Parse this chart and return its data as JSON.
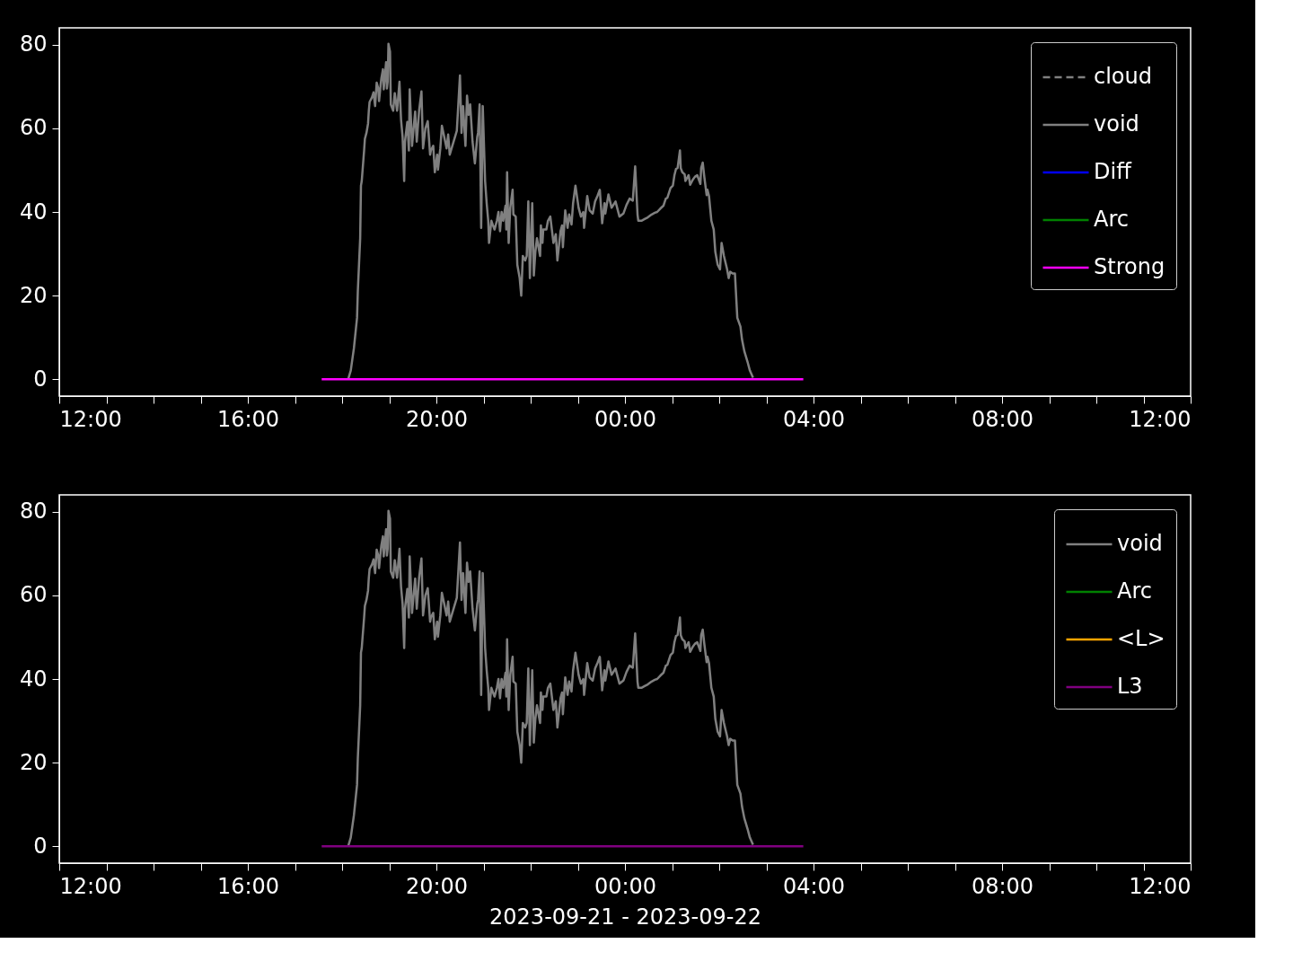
{
  "chart_data": [
    {
      "type": "line",
      "xlim": [
        "2023-09-21T12:00",
        "2023-09-22T12:00"
      ],
      "ylim": [
        -4,
        84
      ],
      "yticks": [
        0,
        20,
        40,
        60,
        80
      ],
      "grid": false,
      "legend": "top right",
      "marker": "none",
      "xticks": [
        {
          "value": "2023-09-21T12:00",
          "label": "12:00"
        },
        {
          "value": "2023-09-21T13:00",
          "label": null
        },
        {
          "value": "2023-09-21T14:00",
          "label": null
        },
        {
          "value": "2023-09-21T15:00",
          "label": null
        },
        {
          "value": "2023-09-21T16:00",
          "label": "16:00"
        },
        {
          "value": "2023-09-21T17:00",
          "label": null
        },
        {
          "value": "2023-09-21T18:00",
          "label": null
        },
        {
          "value": "2023-09-21T19:00",
          "label": null
        },
        {
          "value": "2023-09-21T20:00",
          "label": "20:00"
        },
        {
          "value": "2023-09-21T21:00",
          "label": null
        },
        {
          "value": "2023-09-21T22:00",
          "label": null
        },
        {
          "value": "2023-09-21T23:00",
          "label": null
        },
        {
          "value": "2023-09-22T00:00",
          "label": "00:00"
        },
        {
          "value": "2023-09-22T01:00",
          "label": null
        },
        {
          "value": "2023-09-22T02:00",
          "label": null
        },
        {
          "value": "2023-09-22T03:00",
          "label": null
        },
        {
          "value": "2023-09-22T04:00",
          "label": "04:00"
        },
        {
          "value": "2023-09-22T05:00",
          "label": null
        },
        {
          "value": "2023-09-22T06:00",
          "label": null
        },
        {
          "value": "2023-09-22T07:00",
          "label": null
        },
        {
          "value": "2023-09-22T08:00",
          "label": "08:00"
        },
        {
          "value": "2023-09-22T09:00",
          "label": null
        },
        {
          "value": "2023-09-22T10:00",
          "label": null
        },
        {
          "value": "2023-09-22T11:00",
          "label": null
        },
        {
          "value": "2023-09-22T12:00",
          "label": "12:00"
        }
      ],
      "series": [
        {
          "name": "cloud",
          "color": "#808080",
          "line_style": "dashed"
        },
        {
          "name": "void",
          "color": "#808080",
          "x": [
            "2023-09-21T18:08",
            "2023-09-21T18:11",
            "2023-09-21T18:15",
            "2023-09-21T18:19",
            "2023-09-21T18:20",
            "2023-09-21T18:23",
            "2023-09-21T18:24",
            "2023-09-21T18:25",
            "2023-09-21T18:28",
            "2023-09-21T18:29",
            "2023-09-21T18:31",
            "2023-09-21T18:33",
            "2023-09-21T18:34",
            "2023-09-21T18:35",
            "2023-09-21T18:38",
            "2023-09-21T18:40",
            "2023-09-21T18:42",
            "2023-09-21T18:44",
            "2023-09-21T18:46",
            "2023-09-21T18:47",
            "2023-09-21T18:49",
            "2023-09-21T18:50",
            "2023-09-21T18:52",
            "2023-09-21T18:53",
            "2023-09-21T18:55",
            "2023-09-21T18:56",
            "2023-09-21T18:57",
            "2023-09-21T18:58",
            "2023-09-21T18:59",
            "2023-09-21T19:01",
            "2023-09-21T19:02",
            "2023-09-21T19:05",
            "2023-09-21T19:07",
            "2023-09-21T19:10",
            "2023-09-21T19:13",
            "2023-09-21T19:15",
            "2023-09-21T19:17",
            "2023-09-21T19:19",
            "2023-09-21T19:20",
            "2023-09-21T19:23",
            "2023-09-21T19:25",
            "2023-09-21T19:26",
            "2023-09-21T19:29",
            "2023-09-21T19:31",
            "2023-09-21T19:33",
            "2023-09-21T19:35",
            "2023-09-21T19:38",
            "2023-09-21T19:41",
            "2023-09-21T19:43",
            "2023-09-21T19:46",
            "2023-09-21T19:49",
            "2023-09-21T19:52",
            "2023-09-21T19:53",
            "2023-09-21T19:56",
            "2023-09-21T19:58",
            "2023-09-21T20:01",
            "2023-09-21T20:02",
            "2023-09-21T20:05",
            "2023-09-21T20:07",
            "2023-09-21T20:10",
            "2023-09-21T20:13",
            "2023-09-21T20:15",
            "2023-09-21T20:17",
            "2023-09-21T20:26",
            "2023-09-21T20:30",
            "2023-09-21T20:32",
            "2023-09-21T20:34",
            "2023-09-21T20:37",
            "2023-09-21T20:39",
            "2023-09-21T20:41",
            "2023-09-21T20:43",
            "2023-09-21T20:46",
            "2023-09-21T20:49",
            "2023-09-21T20:52",
            "2023-09-21T20:53",
            "2023-09-21T20:55",
            "2023-09-21T20:57",
            "2023-09-21T20:59",
            "2023-09-21T21:02",
            "2023-09-21T21:04",
            "2023-09-21T21:06",
            "2023-09-21T21:07",
            "2023-09-21T21:10",
            "2023-09-21T21:12",
            "2023-09-21T21:14",
            "2023-09-21T21:17",
            "2023-09-21T21:19",
            "2023-09-21T21:21",
            "2023-09-21T21:23",
            "2023-09-21T21:25",
            "2023-09-21T21:28",
            "2023-09-21T21:29",
            "2023-09-21T21:30",
            "2023-09-21T21:32",
            "2023-09-21T21:34",
            "2023-09-21T21:37",
            "2023-09-21T21:38",
            "2023-09-21T21:41",
            "2023-09-21T21:43",
            "2023-09-21T21:46",
            "2023-09-21T21:48",
            "2023-09-21T21:50",
            "2023-09-21T21:53",
            "2023-09-21T21:55",
            "2023-09-21T21:57",
            "2023-09-21T21:59",
            "2023-09-21T22:02",
            "2023-09-21T22:04",
            "2023-09-21T22:06",
            "2023-09-21T22:08",
            "2023-09-21T22:12",
            "2023-09-21T22:13",
            "2023-09-21T22:15",
            "2023-09-21T22:16",
            "2023-09-21T22:20",
            "2023-09-21T22:22",
            "2023-09-21T22:25",
            "2023-09-21T22:29",
            "2023-09-21T22:32",
            "2023-09-21T22:34",
            "2023-09-21T22:38",
            "2023-09-21T22:40",
            "2023-09-21T22:41",
            "2023-09-21T22:44",
            "2023-09-21T22:47",
            "2023-09-21T22:49",
            "2023-09-21T22:52",
            "2023-09-21T22:54",
            "2023-09-21T22:57",
            "2023-09-21T23:01",
            "2023-09-21T23:04",
            "2023-09-21T23:07",
            "2023-09-21T23:08",
            "2023-09-21T23:12",
            "2023-09-21T23:15",
            "2023-09-21T23:19",
            "2023-09-21T23:22",
            "2023-09-21T23:25",
            "2023-09-21T23:28",
            "2023-09-21T23:31",
            "2023-09-21T23:34",
            "2023-09-21T23:35",
            "2023-09-21T23:39",
            "2023-09-21T23:43",
            "2023-09-21T23:48",
            "2023-09-21T23:53",
            "2023-09-21T23:58",
            "2023-09-22T00:02",
            "2023-09-22T00:06",
            "2023-09-22T00:10",
            "2023-09-22T00:13",
            "2023-09-22T00:16",
            "2023-09-22T00:17",
            "2023-09-22T00:21",
            "2023-09-22T00:25",
            "2023-09-22T00:29",
            "2023-09-22T00:34",
            "2023-09-22T00:38",
            "2023-09-22T00:41",
            "2023-09-22T00:45",
            "2023-09-22T00:49",
            "2023-09-22T00:52",
            "2023-09-22T00:54",
            "2023-09-22T00:58",
            "2023-09-22T01:01",
            "2023-09-22T01:03",
            "2023-09-22T01:05",
            "2023-09-22T01:07",
            "2023-09-22T01:10",
            "2023-09-22T01:11",
            "2023-09-22T01:13",
            "2023-09-22T01:16",
            "2023-09-22T01:17",
            "2023-09-22T01:21",
            "2023-09-22T01:23",
            "2023-09-22T01:26",
            "2023-09-22T01:29",
            "2023-09-22T01:32",
            "2023-09-22T01:36",
            "2023-09-22T01:37",
            "2023-09-22T01:39",
            "2023-09-22T01:41",
            "2023-09-22T01:44",
            "2023-09-22T01:45",
            "2023-09-22T01:47",
            "2023-09-22T01:50",
            "2023-09-22T01:53",
            "2023-09-22T01:55",
            "2023-09-22T01:58",
            "2023-09-22T02:01",
            "2023-09-22T02:03",
            "2023-09-22T02:06",
            "2023-09-22T02:10",
            "2023-09-22T02:12",
            "2023-09-22T02:14",
            "2023-09-22T02:17",
            "2023-09-22T02:20",
            "2023-09-22T02:23",
            "2023-09-22T02:27",
            "2023-09-22T02:29",
            "2023-09-22T02:32",
            "2023-09-22T02:36",
            "2023-09-22T02:39",
            "2023-09-22T02:43"
          ],
          "values": [
            0.2,
            2.1,
            7.4,
            14.7,
            21.1,
            33.7,
            46.3,
            47.4,
            54.7,
            57.5,
            58.9,
            61.1,
            64.2,
            66.3,
            67.4,
            68.6,
            65.3,
            70.9,
            69.5,
            66.5,
            70.3,
            72.0,
            74.1,
            69.3,
            73.7,
            75.8,
            69.5,
            71.1,
            80.2,
            78.3,
            65.7,
            64.2,
            68.4,
            64.2,
            71.1,
            62.1,
            57.9,
            47.4,
            56.8,
            61.5,
            54.7,
            69.3,
            55.8,
            60.0,
            64.0,
            56.8,
            64.2,
            68.8,
            55.2,
            60.0,
            61.7,
            53.7,
            54.7,
            55.8,
            49.5,
            53.7,
            50.1,
            55.2,
            60.6,
            57.9,
            55.2,
            58.5,
            53.7,
            59.4,
            72.6,
            58.9,
            65.3,
            55.8,
            67.8,
            63.2,
            65.7,
            56.8,
            51.6,
            57.9,
            58.9,
            65.7,
            36.2,
            65.3,
            47.4,
            42.1,
            37.9,
            32.6,
            37.9,
            36.8,
            35.8,
            37.9,
            40.0,
            35.4,
            40.0,
            37.9,
            41.5,
            35.8,
            49.5,
            32.6,
            41.0,
            45.3,
            39.4,
            38.9,
            27.4,
            24.2,
            20.0,
            29.5,
            28.4,
            29.5,
            42.5,
            24.2,
            42.1,
            24.8,
            30.5,
            33.7,
            29.5,
            36.8,
            32.6,
            35.8,
            35.8,
            37.9,
            38.9,
            32.6,
            34.7,
            28.4,
            35.4,
            36.8,
            31.6,
            40.4,
            36.2,
            39.4,
            37.0,
            42.1,
            46.3,
            41.0,
            38.9,
            40.0,
            36.2,
            43.8,
            40.4,
            39.6,
            42.5,
            43.8,
            45.3,
            37.3,
            42.1,
            39.6,
            44.2,
            41.0,
            42.5,
            38.9,
            39.6,
            41.7,
            43.2,
            42.7,
            50.9,
            39.4,
            37.9,
            37.9,
            38.3,
            38.7,
            39.4,
            39.8,
            40.0,
            40.8,
            41.5,
            43.2,
            43.4,
            45.7,
            46.3,
            48.8,
            50.3,
            50.5,
            54.7,
            50.5,
            49.5,
            49.0,
            47.4,
            48.8,
            46.5,
            47.6,
            48.4,
            48.8,
            46.7,
            50.5,
            51.8,
            48.4,
            44.0,
            45.3,
            43.8,
            37.9,
            35.8,
            30.5,
            27.4,
            26.3,
            32.6,
            29.5,
            26.3,
            24.2,
            25.7,
            25.3,
            25.3,
            14.7,
            12.6,
            9.5,
            6.7,
            4.2,
            2.1,
            0.4
          ]
        },
        {
          "name": "Diff",
          "color": "#0000ff"
        },
        {
          "name": "Arc",
          "color": "#008000"
        },
        {
          "name": "Strong",
          "color": "#ff00ff",
          "x": [
            "2023-09-21T17:34",
            "2023-09-22T03:47"
          ],
          "values": [
            0,
            0
          ]
        }
      ]
    },
    {
      "type": "line",
      "xlim": [
        "2023-09-21T12:00",
        "2023-09-22T12:00"
      ],
      "ylim": [
        -4,
        84
      ],
      "yticks": [
        0,
        20,
        40,
        60,
        80
      ],
      "grid": false,
      "legend": "top right",
      "marker": "none",
      "xlabel": "2023-09-21 - 2023-09-22",
      "xticks": [
        {
          "value": "2023-09-21T12:00",
          "label": "12:00"
        },
        {
          "value": "2023-09-21T13:00",
          "label": null
        },
        {
          "value": "2023-09-21T14:00",
          "label": null
        },
        {
          "value": "2023-09-21T15:00",
          "label": null
        },
        {
          "value": "2023-09-21T16:00",
          "label": "16:00"
        },
        {
          "value": "2023-09-21T17:00",
          "label": null
        },
        {
          "value": "2023-09-21T18:00",
          "label": null
        },
        {
          "value": "2023-09-21T19:00",
          "label": null
        },
        {
          "value": "2023-09-21T20:00",
          "label": "20:00"
        },
        {
          "value": "2023-09-21T21:00",
          "label": null
        },
        {
          "value": "2023-09-21T22:00",
          "label": null
        },
        {
          "value": "2023-09-21T23:00",
          "label": null
        },
        {
          "value": "2023-09-22T00:00",
          "label": "00:00"
        },
        {
          "value": "2023-09-22T01:00",
          "label": null
        },
        {
          "value": "2023-09-22T02:00",
          "label": null
        },
        {
          "value": "2023-09-22T03:00",
          "label": null
        },
        {
          "value": "2023-09-22T04:00",
          "label": "04:00"
        },
        {
          "value": "2023-09-22T05:00",
          "label": null
        },
        {
          "value": "2023-09-22T06:00",
          "label": null
        },
        {
          "value": "2023-09-22T07:00",
          "label": null
        },
        {
          "value": "2023-09-22T08:00",
          "label": "08:00"
        },
        {
          "value": "2023-09-22T09:00",
          "label": null
        },
        {
          "value": "2023-09-22T10:00",
          "label": null
        },
        {
          "value": "2023-09-22T11:00",
          "label": null
        },
        {
          "value": "2023-09-22T12:00",
          "label": "12:00"
        }
      ],
      "series": [
        {
          "name": "void",
          "color": "#808080",
          "x": [
            "2023-09-21T18:08",
            "2023-09-21T18:11",
            "2023-09-21T18:15",
            "2023-09-21T18:19",
            "2023-09-21T18:20",
            "2023-09-21T18:23",
            "2023-09-21T18:24",
            "2023-09-21T18:25",
            "2023-09-21T18:28",
            "2023-09-21T18:29",
            "2023-09-21T18:31",
            "2023-09-21T18:33",
            "2023-09-21T18:34",
            "2023-09-21T18:35",
            "2023-09-21T18:38",
            "2023-09-21T18:40",
            "2023-09-21T18:42",
            "2023-09-21T18:44",
            "2023-09-21T18:46",
            "2023-09-21T18:47",
            "2023-09-21T18:49",
            "2023-09-21T18:50",
            "2023-09-21T18:52",
            "2023-09-21T18:53",
            "2023-09-21T18:55",
            "2023-09-21T18:56",
            "2023-09-21T18:57",
            "2023-09-21T18:58",
            "2023-09-21T18:59",
            "2023-09-21T19:01",
            "2023-09-21T19:02",
            "2023-09-21T19:05",
            "2023-09-21T19:07",
            "2023-09-21T19:10",
            "2023-09-21T19:13",
            "2023-09-21T19:15",
            "2023-09-21T19:17",
            "2023-09-21T19:19",
            "2023-09-21T19:20",
            "2023-09-21T19:23",
            "2023-09-21T19:25",
            "2023-09-21T19:26",
            "2023-09-21T19:29",
            "2023-09-21T19:31",
            "2023-09-21T19:33",
            "2023-09-21T19:35",
            "2023-09-21T19:38",
            "2023-09-21T19:41",
            "2023-09-21T19:43",
            "2023-09-21T19:46",
            "2023-09-21T19:49",
            "2023-09-21T19:52",
            "2023-09-21T19:53",
            "2023-09-21T19:56",
            "2023-09-21T19:58",
            "2023-09-21T20:01",
            "2023-09-21T20:02",
            "2023-09-21T20:05",
            "2023-09-21T20:07",
            "2023-09-21T20:10",
            "2023-09-21T20:13",
            "2023-09-21T20:15",
            "2023-09-21T20:17",
            "2023-09-21T20:26",
            "2023-09-21T20:30",
            "2023-09-21T20:32",
            "2023-09-21T20:34",
            "2023-09-21T20:37",
            "2023-09-21T20:39",
            "2023-09-21T20:41",
            "2023-09-21T20:43",
            "2023-09-21T20:46",
            "2023-09-21T20:49",
            "2023-09-21T20:52",
            "2023-09-21T20:53",
            "2023-09-21T20:55",
            "2023-09-21T20:57",
            "2023-09-21T20:59",
            "2023-09-21T21:02",
            "2023-09-21T21:04",
            "2023-09-21T21:06",
            "2023-09-21T21:07",
            "2023-09-21T21:10",
            "2023-09-21T21:12",
            "2023-09-21T21:14",
            "2023-09-21T21:17",
            "2023-09-21T21:19",
            "2023-09-21T21:21",
            "2023-09-21T21:23",
            "2023-09-21T21:25",
            "2023-09-21T21:28",
            "2023-09-21T21:29",
            "2023-09-21T21:30",
            "2023-09-21T21:32",
            "2023-09-21T21:34",
            "2023-09-21T21:37",
            "2023-09-21T21:38",
            "2023-09-21T21:41",
            "2023-09-21T21:43",
            "2023-09-21T21:46",
            "2023-09-21T21:48",
            "2023-09-21T21:50",
            "2023-09-21T21:53",
            "2023-09-21T21:55",
            "2023-09-21T21:57",
            "2023-09-21T21:59",
            "2023-09-21T22:02",
            "2023-09-21T22:04",
            "2023-09-21T22:06",
            "2023-09-21T22:08",
            "2023-09-21T22:12",
            "2023-09-21T22:13",
            "2023-09-21T22:15",
            "2023-09-21T22:16",
            "2023-09-21T22:20",
            "2023-09-21T22:22",
            "2023-09-21T22:25",
            "2023-09-21T22:29",
            "2023-09-21T22:32",
            "2023-09-21T22:34",
            "2023-09-21T22:38",
            "2023-09-21T22:40",
            "2023-09-21T22:41",
            "2023-09-21T22:44",
            "2023-09-21T22:47",
            "2023-09-21T22:49",
            "2023-09-21T22:52",
            "2023-09-21T22:54",
            "2023-09-21T22:57",
            "2023-09-21T23:01",
            "2023-09-21T23:04",
            "2023-09-21T23:07",
            "2023-09-21T23:08",
            "2023-09-21T23:12",
            "2023-09-21T23:15",
            "2023-09-21T23:19",
            "2023-09-21T23:22",
            "2023-09-21T23:25",
            "2023-09-21T23:28",
            "2023-09-21T23:31",
            "2023-09-21T23:34",
            "2023-09-21T23:35",
            "2023-09-21T23:39",
            "2023-09-21T23:43",
            "2023-09-21T23:48",
            "2023-09-21T23:53",
            "2023-09-21T23:58",
            "2023-09-22T00:02",
            "2023-09-22T00:06",
            "2023-09-22T00:10",
            "2023-09-22T00:13",
            "2023-09-22T00:16",
            "2023-09-22T00:17",
            "2023-09-22T00:21",
            "2023-09-22T00:25",
            "2023-09-22T00:29",
            "2023-09-22T00:34",
            "2023-09-22T00:38",
            "2023-09-22T00:41",
            "2023-09-22T00:45",
            "2023-09-22T00:49",
            "2023-09-22T00:52",
            "2023-09-22T00:54",
            "2023-09-22T00:58",
            "2023-09-22T01:01",
            "2023-09-22T01:03",
            "2023-09-22T01:05",
            "2023-09-22T01:07",
            "2023-09-22T01:10",
            "2023-09-22T01:11",
            "2023-09-22T01:13",
            "2023-09-22T01:16",
            "2023-09-22T01:17",
            "2023-09-22T01:21",
            "2023-09-22T01:23",
            "2023-09-22T01:26",
            "2023-09-22T01:29",
            "2023-09-22T01:32",
            "2023-09-22T01:36",
            "2023-09-22T01:37",
            "2023-09-22T01:39",
            "2023-09-22T01:41",
            "2023-09-22T01:44",
            "2023-09-22T01:45",
            "2023-09-22T01:47",
            "2023-09-22T01:50",
            "2023-09-22T01:53",
            "2023-09-22T01:55",
            "2023-09-22T01:58",
            "2023-09-22T02:01",
            "2023-09-22T02:03",
            "2023-09-22T02:06",
            "2023-09-22T02:10",
            "2023-09-22T02:12",
            "2023-09-22T02:14",
            "2023-09-22T02:17",
            "2023-09-22T02:20",
            "2023-09-22T02:23",
            "2023-09-22T02:27",
            "2023-09-22T02:29",
            "2023-09-22T02:32",
            "2023-09-22T02:36",
            "2023-09-22T02:39",
            "2023-09-22T02:43"
          ],
          "values": [
            0.2,
            2.1,
            7.4,
            14.7,
            21.1,
            33.7,
            46.3,
            47.4,
            54.7,
            57.5,
            58.9,
            61.1,
            64.2,
            66.3,
            67.4,
            68.6,
            65.3,
            70.9,
            69.5,
            66.5,
            70.3,
            72.0,
            74.1,
            69.3,
            73.7,
            75.8,
            69.5,
            71.1,
            80.2,
            78.3,
            65.7,
            64.2,
            68.4,
            64.2,
            71.1,
            62.1,
            57.9,
            47.4,
            56.8,
            61.5,
            54.7,
            69.3,
            55.8,
            60.0,
            64.0,
            56.8,
            64.2,
            68.8,
            55.2,
            60.0,
            61.7,
            53.7,
            54.7,
            55.8,
            49.5,
            53.7,
            50.1,
            55.2,
            60.6,
            57.9,
            55.2,
            58.5,
            53.7,
            59.4,
            72.6,
            58.9,
            65.3,
            55.8,
            67.8,
            63.2,
            65.7,
            56.8,
            51.6,
            57.9,
            58.9,
            65.7,
            36.2,
            65.3,
            47.4,
            42.1,
            37.9,
            32.6,
            37.9,
            36.8,
            35.8,
            37.9,
            40.0,
            35.4,
            40.0,
            37.9,
            41.5,
            35.8,
            49.5,
            32.6,
            41.0,
            45.3,
            39.4,
            38.9,
            27.4,
            24.2,
            20.0,
            29.5,
            28.4,
            29.5,
            42.5,
            24.2,
            42.1,
            24.8,
            30.5,
            33.7,
            29.5,
            36.8,
            32.6,
            35.8,
            35.8,
            37.9,
            38.9,
            32.6,
            34.7,
            28.4,
            35.4,
            36.8,
            31.6,
            40.4,
            36.2,
            39.4,
            37.0,
            42.1,
            46.3,
            41.0,
            38.9,
            40.0,
            36.2,
            43.8,
            40.4,
            39.6,
            42.5,
            43.8,
            45.3,
            37.3,
            42.1,
            39.6,
            44.2,
            41.0,
            42.5,
            38.9,
            39.6,
            41.7,
            43.2,
            42.7,
            50.9,
            39.4,
            37.9,
            37.9,
            38.3,
            38.7,
            39.4,
            39.8,
            40.0,
            40.8,
            41.5,
            43.2,
            43.4,
            45.7,
            46.3,
            48.8,
            50.3,
            50.5,
            54.7,
            50.5,
            49.5,
            49.0,
            47.4,
            48.8,
            46.5,
            47.6,
            48.4,
            48.8,
            46.7,
            50.5,
            51.8,
            48.4,
            44.0,
            45.3,
            43.8,
            37.9,
            35.8,
            30.5,
            27.4,
            26.3,
            32.6,
            29.5,
            26.3,
            24.2,
            25.7,
            25.3,
            25.3,
            14.7,
            12.6,
            9.5,
            6.7,
            4.2,
            2.1,
            0.4
          ]
        },
        {
          "name": "Arc",
          "color": "#008000"
        },
        {
          "name": "<L>",
          "color": "#ffa500"
        },
        {
          "name": "L3",
          "color": "#800080",
          "x": [
            "2023-09-21T17:34",
            "2023-09-22T03:47"
          ],
          "values": [
            0,
            0
          ]
        }
      ]
    }
  ]
}
